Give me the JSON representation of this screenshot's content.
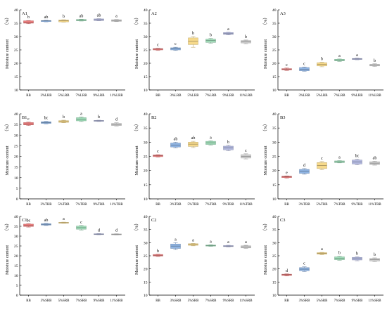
{
  "figure": {
    "ylabel_main": "Moisture content",
    "ylabel_unit": "（%）"
  },
  "chart_data": [
    {
      "panel": "A1",
      "type": "box",
      "categories": [
        "RB",
        "3%LRB",
        "5%LRB",
        "7%LRB",
        "9%LRB",
        "11%LRB"
      ],
      "ylim": [
        10,
        40
      ],
      "yticks": [
        10,
        15,
        20,
        25,
        30,
        35,
        40
      ],
      "boxes": [
        {
          "q1": 35.0,
          "median": 35.4,
          "q3": 35.9,
          "min": 34.8,
          "max": 36.0,
          "color": "#f08080",
          "sig": "b"
        },
        {
          "q1": 35.6,
          "median": 35.9,
          "q3": 36.0,
          "min": 35.5,
          "max": 36.1,
          "color": "#8fb4e3",
          "sig": "ab"
        },
        {
          "q1": 35.5,
          "median": 35.9,
          "q3": 36.2,
          "min": 35.4,
          "max": 36.3,
          "color": "#f6d98a",
          "sig": "b"
        },
        {
          "q1": 35.9,
          "median": 36.1,
          "q3": 36.4,
          "min": 35.8,
          "max": 36.5,
          "color": "#9fdcb8",
          "sig": "ab"
        },
        {
          "q1": 36.0,
          "median": 36.3,
          "q3": 36.6,
          "min": 35.9,
          "max": 36.7,
          "color": "#b3b9e0",
          "sig": "ab"
        },
        {
          "q1": 35.7,
          "median": 36.0,
          "q3": 36.3,
          "min": 35.6,
          "max": 36.4,
          "color": "#cfcfcf",
          "sig": "a"
        }
      ]
    },
    {
      "panel": "A2",
      "type": "box",
      "categories": [
        "RB",
        "3%LRB",
        "5%LRB",
        "7%LRB",
        "9%LRB",
        "11%LRB"
      ],
      "ylim": [
        10,
        40
      ],
      "yticks": [
        10,
        15,
        20,
        25,
        30,
        35,
        40
      ],
      "boxes": [
        {
          "q1": 25.0,
          "median": 25.3,
          "q3": 25.5,
          "min": 24.8,
          "max": 25.6,
          "color": "#f08080",
          "sig": "c"
        },
        {
          "q1": 25.0,
          "median": 25.4,
          "q3": 25.8,
          "min": 24.8,
          "max": 26.0,
          "color": "#8fb4e3",
          "sig": "c"
        },
        {
          "q1": 27.0,
          "median": 28.2,
          "q3": 29.5,
          "min": 26.0,
          "max": 30.0,
          "color": "#f6d98a",
          "sig": "b"
        },
        {
          "q1": 27.8,
          "median": 28.5,
          "q3": 29.0,
          "min": 27.5,
          "max": 29.3,
          "color": "#9fdcb8",
          "sig": "b"
        },
        {
          "q1": 30.8,
          "median": 31.1,
          "q3": 31.5,
          "min": 30.6,
          "max": 31.6,
          "color": "#b3b9e0",
          "sig": "a"
        },
        {
          "q1": 27.6,
          "median": 28.0,
          "q3": 28.5,
          "min": 27.3,
          "max": 28.7,
          "color": "#cfcfcf",
          "sig": "b"
        }
      ]
    },
    {
      "panel": "A3",
      "type": "box",
      "categories": [
        "RB",
        "3%LRB",
        "5%LRB",
        "7%LRB",
        "9%LRB",
        "11%LRB"
      ],
      "ylim": [
        10,
        40
      ],
      "yticks": [
        10,
        15,
        20,
        25,
        30,
        35,
        40
      ],
      "boxes": [
        {
          "q1": 17.5,
          "median": 17.8,
          "q3": 18.0,
          "min": 17.3,
          "max": 18.2,
          "color": "#f08080",
          "sig": "c"
        },
        {
          "q1": 17.2,
          "median": 17.8,
          "q3": 18.4,
          "min": 17.0,
          "max": 18.6,
          "color": "#8fb4e3",
          "sig": "c"
        },
        {
          "q1": 19.0,
          "median": 19.6,
          "q3": 20.2,
          "min": 18.7,
          "max": 20.4,
          "color": "#f6d98a",
          "sig": "b"
        },
        {
          "q1": 20.9,
          "median": 21.2,
          "q3": 21.5,
          "min": 20.7,
          "max": 21.6,
          "color": "#9fdcb8",
          "sig": "a"
        },
        {
          "q1": 21.4,
          "median": 21.6,
          "q3": 21.8,
          "min": 21.3,
          "max": 21.9,
          "color": "#b3b9e0",
          "sig": "a"
        },
        {
          "q1": 19.0,
          "median": 19.3,
          "q3": 19.6,
          "min": 18.8,
          "max": 19.8,
          "color": "#cfcfcf",
          "sig": "b"
        }
      ]
    },
    {
      "panel": "B1",
      "type": "box",
      "categories": [
        "RB",
        "3%TRB",
        "5%TRB",
        "7%TRB",
        "9%TRB",
        "11%TRB"
      ],
      "ylim": [
        0,
        40
      ],
      "yticks": [
        0,
        5,
        10,
        15,
        20,
        25,
        30,
        35,
        40
      ],
      "boxes": [
        {
          "q1": 34.8,
          "median": 35.3,
          "q3": 35.9,
          "min": 34.5,
          "max": 36.1,
          "color": "#f08080",
          "sig": "c"
        },
        {
          "q1": 35.5,
          "median": 35.9,
          "q3": 36.3,
          "min": 35.3,
          "max": 36.5,
          "color": "#8fb4e3",
          "sig": "bc"
        },
        {
          "q1": 36.0,
          "median": 36.4,
          "q3": 36.8,
          "min": 35.8,
          "max": 37.0,
          "color": "#f6d98a",
          "sig": "b"
        },
        {
          "q1": 36.7,
          "median": 37.4,
          "q3": 38.2,
          "min": 36.4,
          "max": 38.5,
          "color": "#9fdcb8",
          "sig": "a"
        },
        {
          "q1": 36.5,
          "median": 36.7,
          "q3": 36.9,
          "min": 36.4,
          "max": 37.0,
          "color": "#b3b9e0",
          "sig": "b"
        },
        {
          "q1": 34.5,
          "median": 35.0,
          "q3": 35.5,
          "min": 34.3,
          "max": 35.8,
          "color": "#cfcfcf",
          "sig": "d"
        }
      ]
    },
    {
      "panel": "B2",
      "type": "box",
      "categories": [
        "RB",
        "3%TRB",
        "5%TRB",
        "7%TRB",
        "9%TRB",
        "11%TRB"
      ],
      "ylim": [
        10,
        40
      ],
      "yticks": [
        10,
        15,
        20,
        25,
        30,
        35,
        40
      ],
      "boxes": [
        {
          "q1": 24.9,
          "median": 25.2,
          "q3": 25.5,
          "min": 24.7,
          "max": 25.6,
          "color": "#f08080",
          "sig": "c"
        },
        {
          "q1": 28.3,
          "median": 29.0,
          "q3": 29.7,
          "min": 28.0,
          "max": 30.0,
          "color": "#8fb4e3",
          "sig": "ab"
        },
        {
          "q1": 28.5,
          "median": 29.3,
          "q3": 30.0,
          "min": 28.1,
          "max": 30.3,
          "color": "#f6d98a",
          "sig": "ab"
        },
        {
          "q1": 29.2,
          "median": 29.8,
          "q3": 30.3,
          "min": 29.0,
          "max": 30.5,
          "color": "#9fdcb8",
          "sig": "a"
        },
        {
          "q1": 27.3,
          "median": 28.0,
          "q3": 28.6,
          "min": 27.0,
          "max": 28.9,
          "color": "#b3b9e0",
          "sig": "b"
        },
        {
          "q1": 24.4,
          "median": 25.0,
          "q3": 25.6,
          "min": 24.1,
          "max": 25.9,
          "color": "#cfcfcf",
          "sig": "c"
        }
      ]
    },
    {
      "panel": "B3",
      "type": "box",
      "categories": [
        "RB",
        "3%TRB",
        "5%TRB",
        "7%TRB",
        "9%TRB",
        "11%TRB"
      ],
      "ylim": [
        10,
        40
      ],
      "yticks": [
        10,
        15,
        20,
        25,
        30,
        35,
        40
      ],
      "boxes": [
        {
          "q1": 17.5,
          "median": 17.8,
          "q3": 18.0,
          "min": 17.3,
          "max": 18.1,
          "color": "#f08080",
          "sig": "e"
        },
        {
          "q1": 19.0,
          "median": 19.7,
          "q3": 20.4,
          "min": 18.7,
          "max": 20.7,
          "color": "#8fb4e3",
          "sig": "d"
        },
        {
          "q1": 20.7,
          "median": 21.8,
          "q3": 22.8,
          "min": 20.3,
          "max": 23.2,
          "color": "#f6d98a",
          "sig": "c"
        },
        {
          "q1": 22.8,
          "median": 23.1,
          "q3": 23.4,
          "min": 22.7,
          "max": 23.5,
          "color": "#9fdcb8",
          "sig": "a"
        },
        {
          "q1": 22.3,
          "median": 23.0,
          "q3": 23.7,
          "min": 22.0,
          "max": 24.0,
          "color": "#b3b9e0",
          "sig": "bc"
        },
        {
          "q1": 22.1,
          "median": 22.6,
          "q3": 23.1,
          "min": 21.9,
          "max": 23.3,
          "color": "#cfcfcf",
          "sig": "ab"
        }
      ]
    },
    {
      "panel": "C1",
      "type": "box",
      "categories": [
        "RB",
        "3%SRB",
        "5%SRB",
        "7%SRB",
        "9%SRB",
        "11%SRB"
      ],
      "ylim": [
        0,
        40
      ],
      "yticks": [
        0,
        5,
        10,
        15,
        20,
        25,
        30,
        35,
        40
      ],
      "boxes": [
        {
          "q1": 34.9,
          "median": 35.5,
          "q3": 36.1,
          "min": 34.6,
          "max": 36.3,
          "color": "#f08080",
          "sig": "bc"
        },
        {
          "q1": 35.6,
          "median": 36.0,
          "q3": 36.3,
          "min": 35.4,
          "max": 36.5,
          "color": "#8fb4e3",
          "sig": "ab"
        },
        {
          "q1": 36.6,
          "median": 36.8,
          "q3": 37.0,
          "min": 36.5,
          "max": 37.1,
          "color": "#f6d98a",
          "sig": "a"
        },
        {
          "q1": 33.5,
          "median": 34.3,
          "q3": 35.1,
          "min": 33.1,
          "max": 35.4,
          "color": "#9fdcb8",
          "sig": "c"
        },
        {
          "q1": 30.8,
          "median": 31.0,
          "q3": 31.2,
          "min": 30.7,
          "max": 31.3,
          "color": "#b3b9e0",
          "sig": "d"
        },
        {
          "q1": 30.7,
          "median": 30.9,
          "q3": 31.1,
          "min": 30.6,
          "max": 31.2,
          "color": "#cfcfcf",
          "sig": "d"
        }
      ]
    },
    {
      "panel": "C2",
      "type": "box",
      "categories": [
        "RB",
        "3%SRB",
        "5%SRB",
        "7%SRB",
        "9%SRB",
        "11%SRB"
      ],
      "ylim": [
        10,
        40
      ],
      "yticks": [
        10,
        15,
        20,
        25,
        30,
        35,
        40
      ],
      "boxes": [
        {
          "q1": 24.9,
          "median": 25.2,
          "q3": 25.5,
          "min": 24.7,
          "max": 25.6,
          "color": "#f08080",
          "sig": "b"
        },
        {
          "q1": 27.8,
          "median": 28.7,
          "q3": 29.5,
          "min": 27.3,
          "max": 30.0,
          "color": "#8fb4e3",
          "sig": "a"
        },
        {
          "q1": 29.0,
          "median": 29.3,
          "q3": 29.6,
          "min": 28.8,
          "max": 29.7,
          "color": "#f6d98a",
          "sig": "a"
        },
        {
          "q1": 28.7,
          "median": 28.9,
          "q3": 29.1,
          "min": 28.6,
          "max": 29.2,
          "color": "#9fdcb8",
          "sig": "a"
        },
        {
          "q1": 28.5,
          "median": 28.7,
          "q3": 28.9,
          "min": 28.4,
          "max": 29.0,
          "color": "#b3b9e0",
          "sig": "a"
        },
        {
          "q1": 28.0,
          "median": 28.4,
          "q3": 28.8,
          "min": 27.8,
          "max": 29.0,
          "color": "#cfcfcf",
          "sig": "a"
        }
      ]
    },
    {
      "panel": "C3",
      "type": "box",
      "categories": [
        "RB",
        "3%SRB",
        "5%SRB",
        "7%SRB",
        "9%SRB",
        "11%SRB"
      ],
      "ylim": [
        10,
        40
      ],
      "yticks": [
        10,
        15,
        20,
        25,
        30,
        35,
        40
      ],
      "boxes": [
        {
          "q1": 17.5,
          "median": 17.8,
          "q3": 18.0,
          "min": 17.3,
          "max": 18.1,
          "color": "#f08080",
          "sig": "d"
        },
        {
          "q1": 19.3,
          "median": 19.9,
          "q3": 20.5,
          "min": 19.0,
          "max": 20.8,
          "color": "#8fb4e3",
          "sig": "c"
        },
        {
          "q1": 25.6,
          "median": 25.9,
          "q3": 26.2,
          "min": 25.4,
          "max": 26.3,
          "color": "#f6d98a",
          "sig": "a"
        },
        {
          "q1": 23.5,
          "median": 24.0,
          "q3": 24.6,
          "min": 23.3,
          "max": 24.8,
          "color": "#9fdcb8",
          "sig": "b"
        },
        {
          "q1": 23.4,
          "median": 23.9,
          "q3": 24.4,
          "min": 23.1,
          "max": 24.6,
          "color": "#b3b9e0",
          "sig": "b"
        },
        {
          "q1": 23.0,
          "median": 23.5,
          "q3": 24.0,
          "min": 22.8,
          "max": 24.2,
          "color": "#cfcfcf",
          "sig": "b"
        }
      ]
    }
  ]
}
